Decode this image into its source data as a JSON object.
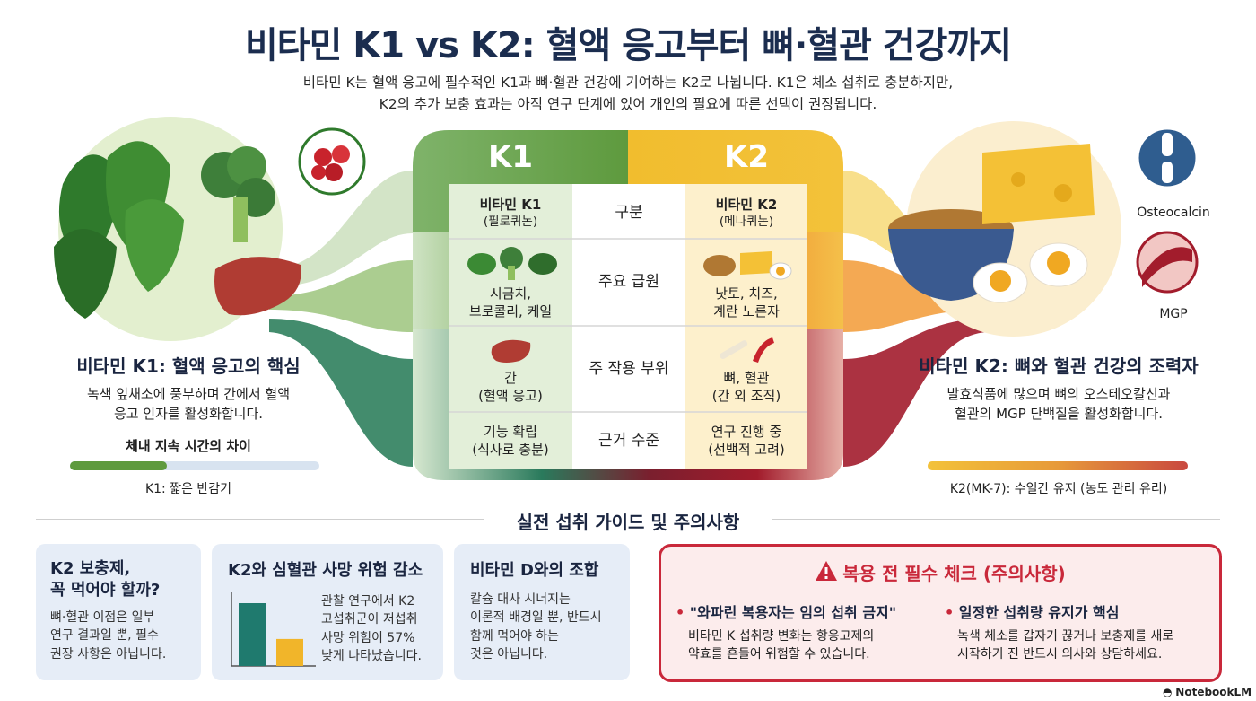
{
  "header": {
    "title": "비타민 K1 vs K2: 혈액 응고부터 뼈·혈관 건강까지",
    "subtitle_line1": "비타민 K는 혈액 응고에 필수적인 K1과 뼈·혈관 건강에 기여하는 K2로 나뉩니다. K1은 체소 섭취로 충분하지만,",
    "subtitle_line2": "K2의 추가 보충 효과는 아직 연구 단계에 있어 개인의 필요에 따른 선택이 권장됩니다."
  },
  "left": {
    "heading": "비타민 K1: 혈액 응고의 핵심",
    "desc_line1": "녹색 잎채소에 풍부하며 간에서 혈액",
    "desc_line2": "응고 인자를 활성화합니다.",
    "duration_title": "체내 지속 시간의 차이",
    "bar_caption": "K1: 짧은 반감기",
    "bar_fill": 0.39
  },
  "right": {
    "heading": "비타민 K2: 뼈와 혈관 건강의 조력자",
    "desc_line1": "발효식품에 많으며 뼈의 오스테오칼신과",
    "desc_line2": "혈관의 MGP 단백질을 활성화합니다.",
    "bar_caption": "K2(MK-7): 수일간 유지 (농도 관리 유리)",
    "bar_fill": 1.0,
    "label_osteocalcin": "Osteocalcin",
    "label_mgp": "MGP"
  },
  "table": {
    "k1_tab": "K1",
    "k2_tab": "K2",
    "col_mid_header": "구분",
    "k1_name": "비타민 K1",
    "k1_sub": "(필로퀴논)",
    "k2_name": "비타민 K2",
    "k2_sub": "(메나퀴논)",
    "rows": [
      {
        "label": "주요 급원",
        "k1_l1": "시금치,",
        "k1_l2": "브로콜리, 케일",
        "k2_l1": "낫토, 치즈,",
        "k2_l2": "계란 노른자"
      },
      {
        "label": "주 작용 부위",
        "k1_l1": "간",
        "k1_l2": "(혈액 응고)",
        "k2_l1": "뼈, 혈관",
        "k2_l2": "(간 외 조직)"
      },
      {
        "label": "근거 수준",
        "k1_l1": "기능 확립",
        "k1_l2": "(식사로 충분)",
        "k2_l1": "연구 진행 중",
        "k2_l2": "(선백적 고려)"
      }
    ]
  },
  "guide": {
    "section_title": "실전 섭취 가이드 및 주의사항",
    "card1": {
      "title_l1": "K2 보충제,",
      "title_l2": "꼭 먹어야 할까?",
      "l1": "뼈·혈관 이점은 일부",
      "l2": "연구 결과일 뿐, 필수",
      "l3": "권장 사항은 아닙니다."
    },
    "card2": {
      "title": "K2와 심혈관 사망 위험 감소",
      "l1": "관찰 연구에서 K2",
      "l2": "고섭취군이 저섭취",
      "l3": "사망 위험이 57%",
      "l4": "낮게 나타났습니다.",
      "bar_high": 1.0,
      "bar_low": 0.43
    },
    "card3": {
      "title": "비타민 D와의 조합",
      "l1": "칼슘 대사 시너지는",
      "l2": "이론적 배경일 뿐, 반드시",
      "l3": "함께 먹어야 하는",
      "l4": "것은 아닙니다."
    },
    "warning": {
      "title": "복용 전 필수 체크 (주의사항)",
      "item1_title": "\"와파린 복용자는 임의 섭취 금지\"",
      "item1_l1": "비타민 K 섭취량 변화는 항응고제의",
      "item1_l2": "약효를 흔들어 위험할 수 있습니다.",
      "item2_title": "일정한 섭취량 유지가 핵심",
      "item2_l1": "녹색 체소를 갑자기 끊거나 보충제를 새로",
      "item2_l2": "시작하기 진 반드시 의사와 상담하세요."
    }
  },
  "footer": {
    "brand": "NotebookLM"
  },
  "colors": {
    "green": "#5e9a3e",
    "yellow": "#f1bd2e",
    "red": "#a21c2c",
    "navy": "#1b2d4f"
  }
}
